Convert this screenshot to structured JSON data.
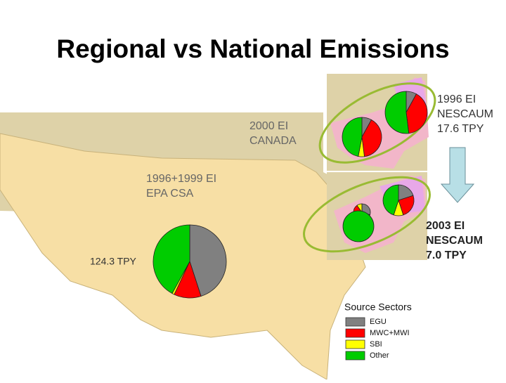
{
  "title": "Regional vs National Emissions",
  "labels": {
    "canada": [
      "2000 EI",
      "CANADA"
    ],
    "epa": [
      "1996+1999 EI",
      "EPA CSA"
    ],
    "nescaum_1996": [
      "1996 EI",
      "NESCAUM",
      "17.6 TPY"
    ],
    "nescaum_2003": [
      "2003 EI",
      "NESCAUM",
      "7.0 TPY"
    ],
    "national_total": "124.3 TPY"
  },
  "legend": {
    "title": "Source Sectors",
    "items": [
      {
        "name": "EGU",
        "color": "#808080"
      },
      {
        "name": "MWC+MWI",
        "color": "#ff0000"
      },
      {
        "name": "SBI",
        "color": "#ffff00"
      },
      {
        "name": "Other",
        "color": "#00cc00"
      }
    ]
  },
  "pies": [
    {
      "values": [
        45,
        12,
        1,
        42
      ]
    },
    {
      "values": [
        8,
        40,
        5,
        47
      ]
    },
    {
      "values": [
        8,
        40,
        0,
        52
      ]
    },
    {
      "values": [
        30,
        60,
        10,
        0
      ]
    },
    {
      "values": [
        0,
        0,
        0,
        100
      ]
    },
    {
      "values": [
        20,
        25,
        10,
        45
      ]
    }
  ]
}
